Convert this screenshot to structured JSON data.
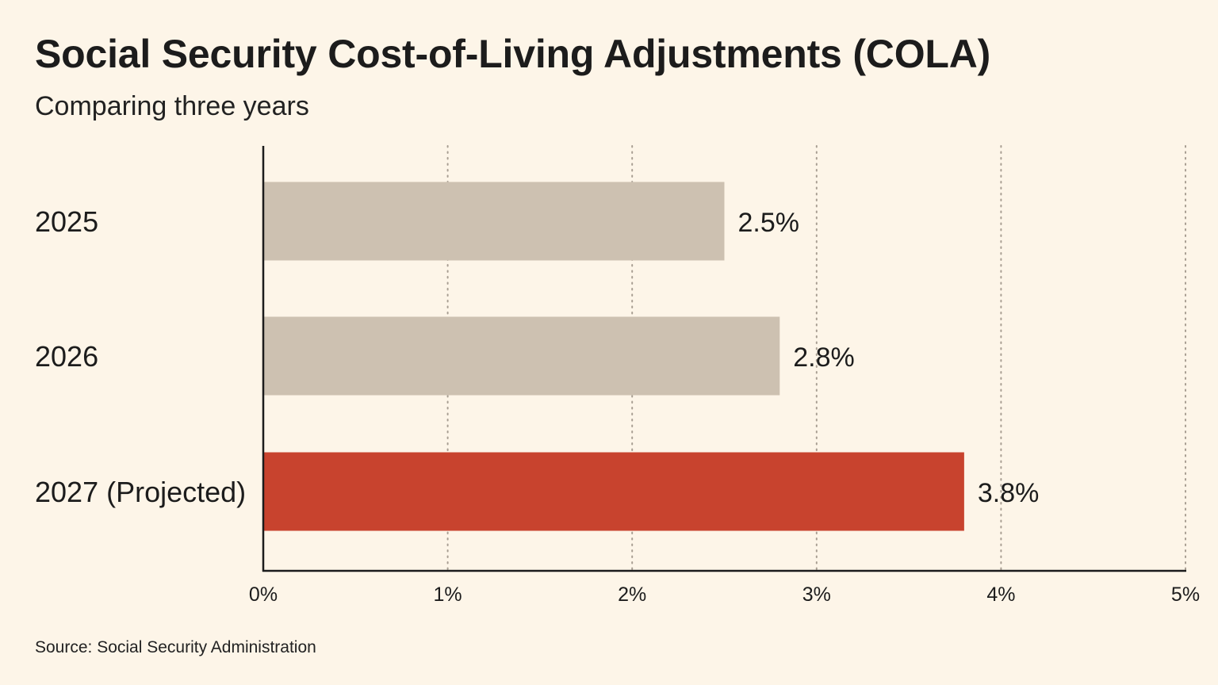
{
  "chart_data": {
    "type": "bar",
    "orientation": "horizontal",
    "title": "Social Security Cost-of-Living Adjustments (COLA)",
    "subtitle": "Comparing three years",
    "categories": [
      "2025",
      "2026",
      "2027 (Projected)"
    ],
    "values": [
      2.5,
      2.8,
      3.8
    ],
    "value_labels": [
      "2.5%",
      "2.8%",
      "3.8%"
    ],
    "xlim": [
      0,
      5
    ],
    "xticks": [
      0,
      1,
      2,
      3,
      4,
      5
    ],
    "xtick_labels": [
      "0%",
      "1%",
      "2%",
      "3%",
      "4%",
      "5%"
    ],
    "grid": "vertical dotted",
    "bar_colors": [
      "#cdc1b1",
      "#cdc1b1",
      "#c8432e"
    ],
    "axis_color": "#1c1c1c",
    "grid_color": "#a89e92"
  },
  "footer": {
    "source": "Source: Social Security Administration"
  }
}
